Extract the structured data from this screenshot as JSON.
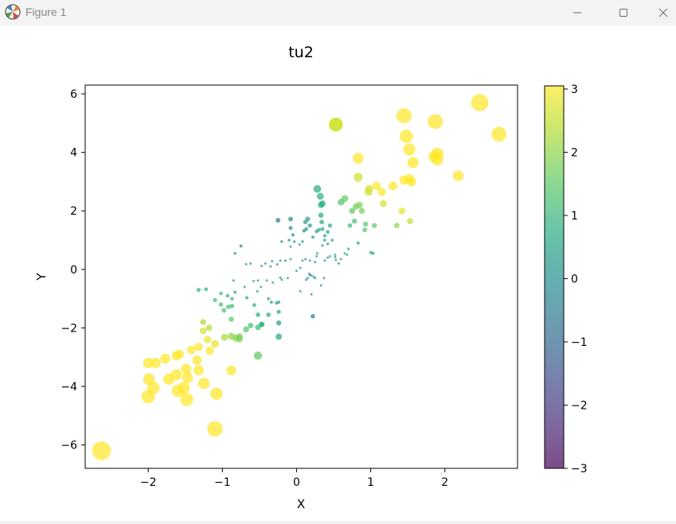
{
  "window": {
    "title": "Figure 1",
    "controls": {
      "minimize": "minimize",
      "maximize": "maximize",
      "close": "close"
    }
  },
  "colors": {
    "titlebar": "#f3f3f3",
    "colormap": "viridis"
  },
  "chart_data": {
    "type": "scatter",
    "title": "tu2",
    "xlabel": "X",
    "ylabel": "Y",
    "xlim": [
      -2.85,
      2.98
    ],
    "ylim": [
      -6.8,
      6.3
    ],
    "xticks": [
      -2,
      -1,
      0,
      1,
      2
    ],
    "yticks": [
      -6,
      -4,
      -2,
      0,
      2,
      4,
      6
    ],
    "grid": false,
    "marker_alpha": 0.7,
    "color_meaning": "product of x and y",
    "size_meaning": "distance from origin",
    "colorbar": {
      "range": [
        -3.0,
        3.05
      ],
      "ticks": [
        -3,
        -2,
        -1,
        0,
        1,
        2,
        3
      ],
      "colormap": "viridis"
    },
    "points": [
      [
        -2.63,
        -6.2
      ],
      [
        -1.1,
        -5.45
      ],
      [
        -1.48,
        -4.45
      ],
      [
        -1.6,
        -4.15
      ],
      [
        -1.52,
        -4.05
      ],
      [
        -1.93,
        -4.05
      ],
      [
        -2.0,
        -4.35
      ],
      [
        -1.99,
        -3.75
      ],
      [
        -1.72,
        -3.75
      ],
      [
        -1.62,
        -3.6
      ],
      [
        -1.47,
        -3.7
      ],
      [
        -1.25,
        -3.9
      ],
      [
        -1.32,
        -3.45
      ],
      [
        -1.49,
        -3.4
      ],
      [
        -1.34,
        -3.1
      ],
      [
        -1.9,
        -3.2
      ],
      [
        -2.0,
        -3.2
      ],
      [
        -1.77,
        -3.05
      ],
      [
        -1.58,
        -2.9
      ],
      [
        -1.42,
        -2.75
      ],
      [
        -1.62,
        -2.95
      ],
      [
        -1.32,
        -2.65
      ],
      [
        -1.17,
        -2.78
      ],
      [
        -1.26,
        -2.1
      ],
      [
        -1.18,
        -2.0
      ],
      [
        -1.26,
        -1.8
      ],
      [
        -1.08,
        -4.25
      ],
      [
        -0.88,
        -3.45
      ],
      [
        -1.2,
        -2.4
      ],
      [
        -1.1,
        -2.55
      ],
      [
        -0.97,
        -2.32
      ],
      [
        -0.82,
        -2.35
      ],
      [
        -0.77,
        -2.3
      ],
      [
        -0.88,
        -2.28
      ],
      [
        -0.77,
        -2.38
      ],
      [
        -0.68,
        -2.05
      ],
      [
        -0.62,
        -1.92
      ],
      [
        -0.52,
        -1.55
      ],
      [
        -0.88,
        -1.7
      ],
      [
        -0.47,
        -1.88
      ],
      [
        -0.38,
        -1.55
      ],
      [
        -0.98,
        -1.4
      ],
      [
        -0.87,
        -1.25
      ],
      [
        -1.02,
        -1.2
      ],
      [
        -1.1,
        -1.05
      ],
      [
        -1.32,
        -0.7
      ],
      [
        -1.22,
        -0.68
      ],
      [
        -0.87,
        -1.0
      ],
      [
        -0.83,
        -0.78
      ],
      [
        -0.67,
        -0.97
      ],
      [
        -0.57,
        -1.22
      ],
      [
        -0.38,
        -1.0
      ],
      [
        -0.34,
        -1.12
      ],
      [
        -0.27,
        -1.15
      ],
      [
        -0.53,
        -0.75
      ],
      [
        -0.48,
        -0.6
      ],
      [
        -0.58,
        -0.4
      ],
      [
        -0.52,
        -0.38
      ],
      [
        -0.4,
        -0.38
      ],
      [
        -0.32,
        -0.45
      ],
      [
        -0.22,
        -0.28
      ],
      [
        -0.2,
        -0.35
      ],
      [
        -0.85,
        -0.38
      ],
      [
        -0.7,
        -0.6
      ],
      [
        -0.52,
        -1.98
      ],
      [
        -0.24,
        -1.12
      ],
      [
        -0.24,
        -1.45
      ],
      [
        -0.24,
        -1.83
      ],
      [
        -0.24,
        -2.3
      ],
      [
        -0.52,
        -2.95
      ],
      [
        -1.02,
        -0.82
      ],
      [
        -0.93,
        -0.9
      ],
      [
        -0.92,
        -1.28
      ],
      [
        -0.47,
        -1.88
      ],
      [
        -0.12,
        -0.3
      ],
      [
        -0.26,
        0.17
      ],
      [
        -0.35,
        0.1
      ],
      [
        -0.42,
        0.2
      ],
      [
        -0.47,
        0.12
      ],
      [
        -0.62,
        0.2
      ],
      [
        -0.68,
        0.18
      ],
      [
        -0.33,
        0.28
      ],
      [
        -0.22,
        0.3
      ],
      [
        -0.15,
        0.3
      ],
      [
        -0.75,
        0.8
      ],
      [
        -0.83,
        0.55
      ],
      [
        -0.25,
        1.68
      ],
      [
        -0.2,
        0.95
      ],
      [
        -0.1,
        1.0
      ],
      [
        -0.08,
        0.78
      ],
      [
        -0.05,
        1.18
      ],
      [
        -0.08,
        1.42
      ],
      [
        -0.08,
        1.72
      ],
      [
        -0.03,
        0.95
      ],
      [
        0.04,
        0.85
      ],
      [
        0.08,
        0.95
      ],
      [
        0.1,
        1.32
      ],
      [
        0.13,
        1.38
      ],
      [
        0.12,
        1.62
      ],
      [
        0.15,
        1.72
      ],
      [
        0.18,
        1.5
      ],
      [
        0.22,
        1.1
      ],
      [
        0.27,
        1.3
      ],
      [
        0.3,
        1.35
      ],
      [
        0.34,
        1.62
      ],
      [
        0.33,
        1.85
      ],
      [
        0.38,
        1.15
      ],
      [
        0.35,
        1.38
      ],
      [
        0.42,
        1.28
      ],
      [
        0.48,
        1.0
      ],
      [
        0.52,
        0.5
      ],
      [
        0.28,
        2.75
      ],
      [
        0.32,
        2.5
      ],
      [
        0.35,
        2.25
      ],
      [
        0.33,
        2.2
      ],
      [
        0.45,
        1.5
      ],
      [
        0.53,
        4.95
      ],
      [
        0.6,
        2.3
      ],
      [
        0.65,
        2.42
      ],
      [
        0.72,
        1.5
      ],
      [
        0.78,
        1.65
      ],
      [
        0.75,
        2.0
      ],
      [
        0.8,
        2.15
      ],
      [
        0.85,
        2.2
      ],
      [
        0.83,
        3.15
      ],
      [
        0.83,
        3.8
      ],
      [
        0.88,
        2.0
      ],
      [
        0.93,
        1.55
      ],
      [
        0.92,
        1.35
      ],
      [
        0.97,
        2.65
      ],
      [
        0.98,
        2.75
      ],
      [
        1.05,
        1.5
      ],
      [
        1.08,
        2.85
      ],
      [
        1.15,
        2.65
      ],
      [
        1.17,
        2.25
      ],
      [
        1.3,
        2.85
      ],
      [
        1.35,
        1.5
      ],
      [
        1.42,
        2.0
      ],
      [
        1.45,
        3.05
      ],
      [
        1.52,
        3.1
      ],
      [
        1.55,
        3.0
      ],
      [
        1.48,
        4.55
      ],
      [
        1.45,
        5.25
      ],
      [
        1.52,
        4.1
      ],
      [
        1.57,
        3.65
      ],
      [
        1.53,
        1.65
      ],
      [
        1.87,
        5.05
      ],
      [
        1.9,
        3.95
      ],
      [
        1.9,
        3.75
      ],
      [
        1.86,
        3.85
      ],
      [
        2.18,
        3.2
      ],
      [
        2.47,
        5.7
      ],
      [
        2.73,
        4.62
      ],
      [
        0.42,
        0.4
      ],
      [
        0.53,
        0.32
      ],
      [
        0.45,
        0.45
      ],
      [
        0.38,
        0.3
      ],
      [
        0.35,
        0.82
      ],
      [
        0.28,
        0.55
      ],
      [
        0.25,
        0.25
      ],
      [
        0.18,
        0.3
      ],
      [
        0.12,
        0.35
      ],
      [
        0.08,
        0.3
      ],
      [
        0.05,
        0.05
      ],
      [
        0.0,
        -0.05
      ],
      [
        0.6,
        0.35
      ],
      [
        0.65,
        0.55
      ],
      [
        0.57,
        0.2
      ],
      [
        0.42,
        0.87
      ],
      [
        0.52,
        0.42
      ],
      [
        0.68,
        0.5
      ],
      [
        0.7,
        0.7
      ],
      [
        0.83,
        0.9
      ],
      [
        1.0,
        0.58
      ],
      [
        1.03,
        0.55
      ],
      [
        -0.08,
        0.35
      ],
      [
        0.17,
        -0.15
      ],
      [
        0.2,
        -0.2
      ],
      [
        0.25,
        -0.3
      ],
      [
        0.33,
        -0.55
      ],
      [
        0.37,
        -0.3
      ],
      [
        0.27,
        0.45
      ],
      [
        0.15,
        -0.3
      ],
      [
        0.13,
        -0.35
      ],
      [
        0.2,
        -0.85
      ],
      [
        0.22,
        -1.6
      ],
      [
        0.05,
        -0.75
      ],
      [
        0.18,
        -0.2
      ],
      [
        0.23,
        -0.25
      ],
      [
        0.38,
        1.0
      ],
      [
        0.53,
        4.95
      ]
    ]
  }
}
